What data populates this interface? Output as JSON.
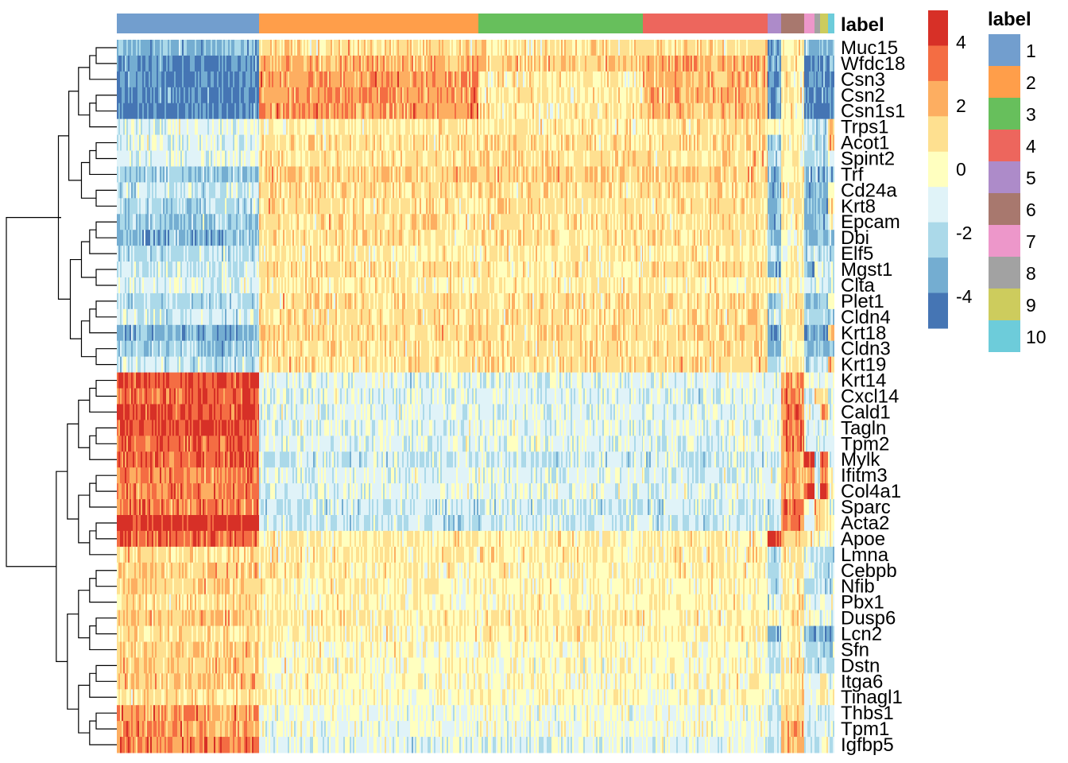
{
  "chart_data": {
    "type": "heatmap",
    "title": "",
    "annotation_title": "label",
    "clusters": [
      "1",
      "2",
      "3",
      "4",
      "5",
      "6",
      "7",
      "8",
      "9",
      "10"
    ],
    "cluster_colors": [
      "#729ECE",
      "#FF9E4A",
      "#67BF5C",
      "#ED665D",
      "#AD8BC9",
      "#A8786E",
      "#ED97CA",
      "#A2A2A2",
      "#CDCC5D",
      "#6DCCDA"
    ],
    "genes": [
      "Muc15",
      "Wfdc18",
      "Csn3",
      "Csn2",
      "Csn1s1",
      "Trps1",
      "Acot1",
      "Spint2",
      "Trf",
      "Cd24a",
      "Krt8",
      "Epcam",
      "Dbi",
      "Elf5",
      "Mgst1",
      "Clta",
      "Plet1",
      "Cldn4",
      "Krt18",
      "Cldn3",
      "Krt19",
      "Krt14",
      "Cxcl14",
      "Cald1",
      "Tagln",
      "Tpm2",
      "Mylk",
      "Ifitm3",
      "Col4a1",
      "Sparc",
      "Acta2",
      "Apoe",
      "Lmna",
      "Cebpb",
      "Nfib",
      "Pbx1",
      "Dusp6",
      "Lcn2",
      "Sfn",
      "Dstn",
      "Itga6",
      "Tinagl1",
      "Thbs1",
      "Tpm1",
      "Igfbp5"
    ],
    "approx_mean_by_cluster": [
      [
        -3,
        1,
        1,
        1,
        -3,
        0.5,
        -3,
        -3,
        -3,
        -3
      ],
      [
        -4,
        2,
        1.5,
        2,
        -3.5,
        0.5,
        -4,
        -4,
        -4,
        -4
      ],
      [
        -4,
        2.5,
        0.5,
        2,
        -4,
        0.5,
        -4,
        -4,
        -4,
        -4
      ],
      [
        -4,
        2.5,
        0.5,
        2,
        -3.5,
        0.5,
        -4,
        -4,
        -4,
        -4
      ],
      [
        -4,
        2.5,
        0.5,
        2,
        -4,
        0.5,
        -4,
        -4,
        -4,
        -4
      ],
      [
        -1,
        0.5,
        0.5,
        0.8,
        0,
        0.3,
        -2,
        -2,
        -2,
        1.5
      ],
      [
        -1,
        1,
        1,
        1,
        -2,
        0.5,
        -2,
        -2,
        -2,
        2
      ],
      [
        -1,
        1,
        1,
        1,
        -2,
        0.3,
        -2,
        -2,
        -2,
        -1
      ],
      [
        -2.5,
        1.5,
        1.5,
        1.5,
        -3,
        0.5,
        -3,
        -3,
        -3,
        -3
      ],
      [
        -1.5,
        1,
        1,
        1,
        -3,
        0.5,
        -3,
        -3,
        -3,
        0.5
      ],
      [
        -2,
        1,
        1,
        1,
        -3,
        0.5,
        -3,
        -3,
        -3,
        0.5
      ],
      [
        -2.5,
        1,
        1,
        1,
        -3,
        0.5,
        -3,
        -3,
        -3,
        0
      ],
      [
        -3,
        1,
        1,
        1,
        -3,
        0,
        -3,
        -3,
        -3,
        -3
      ],
      [
        -2,
        0.5,
        0.5,
        0.8,
        -2,
        0,
        -2,
        -2,
        -2,
        -2
      ],
      [
        -1.5,
        1,
        0.5,
        1,
        -3,
        0.5,
        -3,
        -1,
        -1,
        -1
      ],
      [
        -1,
        0.5,
        0.5,
        0.5,
        0,
        0,
        -1,
        -1,
        -1,
        -1
      ],
      [
        -2,
        1,
        1,
        1,
        -3,
        0.5,
        -3,
        -3,
        -3,
        0
      ],
      [
        -1.5,
        1,
        1,
        1,
        -2,
        0.8,
        -2,
        -2,
        -2,
        -2
      ],
      [
        -3,
        1.2,
        1,
        1.2,
        -3.5,
        0.8,
        -3.5,
        -3.5,
        -3.5,
        1
      ],
      [
        -2.5,
        1,
        1,
        1,
        -3,
        0.5,
        -3,
        -3,
        -3,
        -3
      ],
      [
        -1.5,
        1,
        1,
        1,
        -2,
        0.5,
        -2,
        -2,
        -2,
        2
      ],
      [
        4,
        -1,
        -1,
        -1,
        -1,
        2.5,
        -1,
        -1,
        -1,
        -1
      ],
      [
        3.5,
        -1,
        -1,
        -1,
        -1,
        2.5,
        -1,
        1,
        1,
        -1
      ],
      [
        4,
        -1,
        -1,
        -1,
        -1,
        3,
        -1,
        -1,
        2,
        -1
      ],
      [
        4,
        -1,
        -1,
        -1,
        -1,
        3,
        -1,
        -1,
        -1,
        -1
      ],
      [
        3.5,
        -1,
        -1,
        -1,
        -1,
        3,
        -1,
        -1,
        -1,
        -1
      ],
      [
        3.5,
        -1.5,
        -1.5,
        -1.5,
        -1.5,
        2.5,
        4,
        -1.5,
        4,
        -1.5
      ],
      [
        3,
        -1,
        -1,
        -1,
        -1,
        2.5,
        2,
        -1,
        3,
        0
      ],
      [
        3,
        -1,
        -1,
        -1,
        -1,
        2,
        4,
        -1,
        4,
        0
      ],
      [
        3,
        -1.5,
        -1.5,
        -1.5,
        -1.5,
        3.5,
        -1,
        1.5,
        1,
        -1.5
      ],
      [
        4.5,
        -1.5,
        -1.5,
        -1.5,
        -1.5,
        3,
        -1,
        1,
        1,
        0
      ],
      [
        3.5,
        0.5,
        0.5,
        0.5,
        4.5,
        1.5,
        0,
        0,
        0,
        0
      ],
      [
        1,
        0.5,
        0.5,
        0.5,
        -2,
        0.5,
        -1,
        -2,
        -2,
        -2
      ],
      [
        1.5,
        0.5,
        0.3,
        0.5,
        -2,
        0.5,
        -1,
        -2,
        -2,
        -2
      ],
      [
        1.5,
        0.3,
        0.3,
        0.3,
        -2,
        0.5,
        -2,
        -2,
        -2,
        -2
      ],
      [
        1,
        0.3,
        0.3,
        0.3,
        -1,
        1,
        -1,
        -1,
        -1,
        -1
      ],
      [
        1.5,
        0.5,
        0.5,
        0.5,
        0,
        1,
        0,
        -1,
        -1,
        -1
      ],
      [
        1,
        0.3,
        0.5,
        0.3,
        -3,
        0.5,
        -3,
        -3,
        -3,
        -3
      ],
      [
        1.5,
        0,
        0,
        0,
        -2,
        0.5,
        -2,
        -2,
        -2,
        -2
      ],
      [
        1.5,
        0,
        0,
        0,
        -2,
        1,
        -2,
        -2,
        -2,
        -2
      ],
      [
        1.5,
        0,
        0,
        0,
        -1,
        0.5,
        -1,
        -1,
        0.5,
        -1
      ],
      [
        1,
        0,
        0,
        0,
        -1,
        1.5,
        -1,
        -1,
        1,
        0
      ],
      [
        2.5,
        -0.5,
        -0.5,
        -0.5,
        -1.5,
        1.5,
        -1.5,
        -1.5,
        -1.5,
        -1.5
      ],
      [
        2.5,
        -0.5,
        -0.5,
        -0.5,
        -1.5,
        2,
        -1.5,
        -1.5,
        -1.5,
        -1.5
      ],
      [
        3,
        -1,
        -1,
        -1,
        -2,
        2,
        -2,
        -2,
        0,
        -2
      ]
    ],
    "color_scale": {
      "range": [
        -5,
        5
      ],
      "ticks": [
        "4",
        "2",
        "0",
        "-2",
        "-4"
      ],
      "tick_values": [
        4,
        2,
        0,
        -2,
        -4
      ],
      "colors": [
        "#D73027",
        "#F46D43",
        "#FDAE61",
        "#FEE090",
        "#FFFFBF",
        "#E0F3F8",
        "#ABD9E9",
        "#74ADD1",
        "#4575B4"
      ]
    },
    "row_dendrogram": true
  }
}
